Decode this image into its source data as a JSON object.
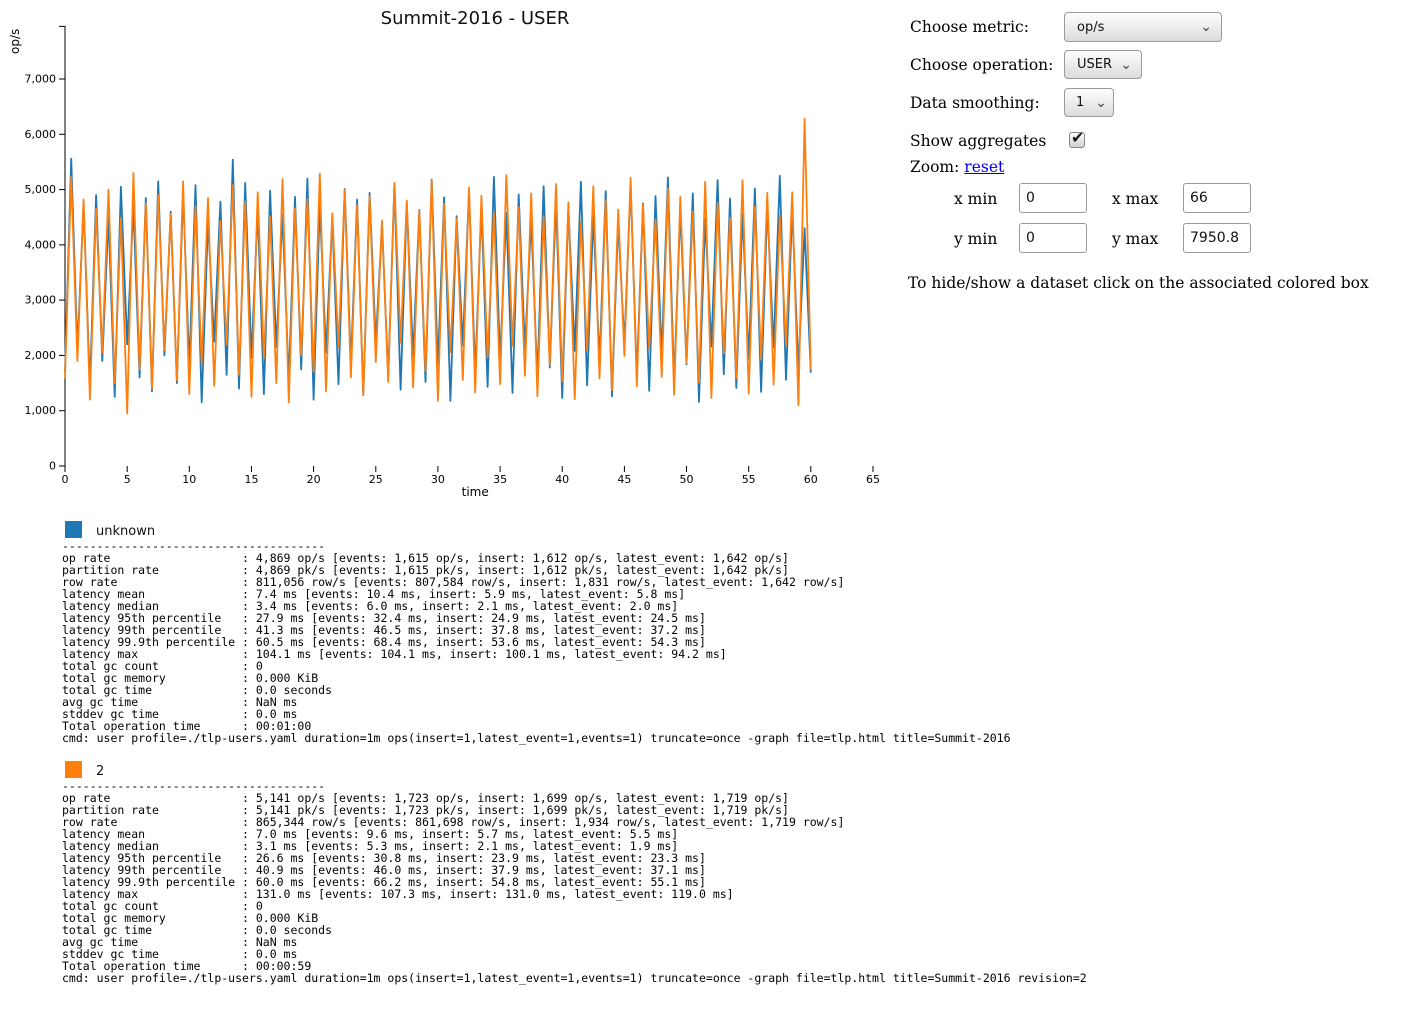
{
  "title": "Summit-2016 - USER",
  "chart_data": {
    "type": "line",
    "title": "Summit-2016 - USER",
    "xlabel": "time",
    "ylabel": "op/s",
    "xlim": [
      0,
      66
    ],
    "ylim": [
      0,
      7950.8
    ],
    "grid": false,
    "legend_position": "below",
    "x_ticks": [
      0,
      5,
      10,
      15,
      20,
      25,
      30,
      35,
      40,
      45,
      50,
      55,
      60,
      65
    ],
    "y_ticks": [
      0,
      1000,
      2000,
      3000,
      4000,
      5000,
      6000,
      7000
    ],
    "x_start": 0,
    "x_step": 0.5,
    "series": [
      {
        "name": "unknown",
        "color": "#1f77b4",
        "values": [
          1700,
          5560,
          2100,
          4750,
          1450,
          4900,
          1900,
          4500,
          1250,
          5050,
          2200,
          4700,
          1600,
          4850,
          1350,
          5150,
          2000,
          4600,
          1500,
          4950,
          1800,
          5080,
          1150,
          4420,
          2250,
          4780,
          1650,
          5540,
          1400,
          5120,
          1950,
          4650,
          1300,
          4980,
          2150,
          4550,
          1550,
          4870,
          1750,
          5200,
          1200,
          4730,
          2050,
          4490,
          1480,
          5010,
          1850,
          4820,
          1280,
          4940,
          2230,
          4380,
          1620,
          5090,
          1380,
          4760,
          1980,
          4630,
          1520,
          5180,
          1820,
          4860,
          1180,
          4520,
          2180,
          4990,
          1680,
          4700,
          1430,
          5230,
          1920,
          4580,
          1320,
          4910,
          2120,
          4450,
          1580,
          5060,
          1780,
          4800,
          1230,
          4680,
          2080,
          5140,
          1460,
          4540,
          1880,
          4970,
          1260,
          4400,
          2210,
          5110,
          1640,
          4750,
          1360,
          4880,
          2010,
          5220,
          1540,
          4620,
          1840,
          4930,
          1160,
          4480,
          2160,
          5170,
          1660,
          4840,
          1410,
          4560,
          1940,
          5020,
          1340,
          4710,
          2140,
          5250,
          1560,
          4660,
          1760,
          4300,
          1700
        ]
      },
      {
        "name": "2",
        "color": "#ff7f0e",
        "values": [
          1600,
          5230,
          1900,
          4820,
          1200,
          4650,
          2050,
          5000,
          1500,
          4480,
          950,
          5300,
          1750,
          4750,
          1400,
          4900,
          2100,
          4560,
          1550,
          5150,
          1300,
          4700,
          1850,
          4850,
          1450,
          4430,
          2200,
          5080,
          1650,
          4780,
          1250,
          4950,
          1950,
          4520,
          1500,
          5190,
          1150,
          4660,
          2000,
          4830,
          1700,
          5290,
          1350,
          4570,
          2150,
          4990,
          1600,
          4720,
          1280,
          4880,
          1880,
          4440,
          1520,
          5120,
          2230,
          4800,
          1420,
          4610,
          1720,
          5160,
          1180,
          4740,
          2060,
          4470,
          1560,
          5040,
          1330,
          4890,
          1960,
          4590,
          1480,
          5260,
          2170,
          4680,
          1630,
          4930,
          1260,
          4510,
          1830,
          5100,
          1530,
          4770,
          1210,
          4420,
          2090,
          5060,
          1580,
          4810,
          1370,
          4640,
          1990,
          5210,
          1440,
          4730,
          2130,
          4460,
          1610,
          5020,
          1290,
          4870,
          1860,
          4600,
          1510,
          5140,
          1230,
          4760,
          2040,
          4490,
          1590,
          5170,
          1310,
          4690,
          1930,
          4940,
          1470,
          4530,
          2180,
          4950,
          1100,
          6280,
          1750
        ]
      }
    ]
  },
  "controls": {
    "metric_label": "Choose metric:",
    "metric_value": "op/s",
    "operation_label": "Choose operation:",
    "operation_value": "USER",
    "smoothing_label": "Data smoothing:",
    "smoothing_value": "1",
    "aggregates_label": "Show aggregates",
    "aggregates_checked": true,
    "zoom_label": "Zoom:",
    "reset_label": "reset",
    "xmin_label": "x min",
    "xmin_value": "0",
    "xmax_label": "x max",
    "xmax_value": "66",
    "ymin_label": "y min",
    "ymin_value": "0",
    "ymax_label": "y max",
    "ymax_value": "7950.8",
    "hint": "To hide/show a dataset click on the associated colored box"
  },
  "icons": {
    "select_chevron": "⌄",
    "checkbox_check": "✔"
  },
  "datasets": [
    {
      "name": "unknown",
      "color": "#1f77b4",
      "lines": [
        "--------------------------------------",
        "op rate                   : 4,869 op/s [events: 1,615 op/s, insert: 1,612 op/s, latest_event: 1,642 op/s]",
        "partition rate            : 4,869 pk/s [events: 1,615 pk/s, insert: 1,612 pk/s, latest_event: 1,642 pk/s]",
        "row rate                  : 811,056 row/s [events: 807,584 row/s, insert: 1,831 row/s, latest_event: 1,642 row/s]",
        "latency mean              : 7.4 ms [events: 10.4 ms, insert: 5.9 ms, latest_event: 5.8 ms]",
        "latency median            : 3.4 ms [events: 6.0 ms, insert: 2.1 ms, latest_event: 2.0 ms]",
        "latency 95th percentile   : 27.9 ms [events: 32.4 ms, insert: 24.9 ms, latest_event: 24.5 ms]",
        "latency 99th percentile   : 41.3 ms [events: 46.5 ms, insert: 37.8 ms, latest_event: 37.2 ms]",
        "latency 99.9th percentile : 60.5 ms [events: 68.4 ms, insert: 53.6 ms, latest_event: 54.3 ms]",
        "latency max               : 104.1 ms [events: 104.1 ms, insert: 100.1 ms, latest_event: 94.2 ms]",
        "total gc count            : 0",
        "total gc memory           : 0.000 KiB",
        "total gc time             : 0.0 seconds",
        "avg gc time               : NaN ms",
        "stddev gc time            : 0.0 ms",
        "Total operation time      : 00:01:00",
        "cmd: user profile=./tlp-users.yaml duration=1m ops(insert=1,latest_event=1,events=1) truncate=once -graph file=tlp.html title=Summit-2016"
      ]
    },
    {
      "name": "2",
      "color": "#ff7f0e",
      "lines": [
        "--------------------------------------",
        "op rate                   : 5,141 op/s [events: 1,723 op/s, insert: 1,699 op/s, latest_event: 1,719 op/s]",
        "partition rate            : 5,141 pk/s [events: 1,723 pk/s, insert: 1,699 pk/s, latest_event: 1,719 pk/s]",
        "row rate                  : 865,344 row/s [events: 861,698 row/s, insert: 1,934 row/s, latest_event: 1,719 row/s]",
        "latency mean              : 7.0 ms [events: 9.6 ms, insert: 5.7 ms, latest_event: 5.5 ms]",
        "latency median            : 3.1 ms [events: 5.3 ms, insert: 2.1 ms, latest_event: 1.9 ms]",
        "latency 95th percentile   : 26.6 ms [events: 30.8 ms, insert: 23.9 ms, latest_event: 23.3 ms]",
        "latency 99th percentile   : 40.9 ms [events: 46.0 ms, insert: 37.9 ms, latest_event: 37.1 ms]",
        "latency 99.9th percentile : 60.0 ms [events: 66.2 ms, insert: 54.8 ms, latest_event: 55.1 ms]",
        "latency max               : 131.0 ms [events: 107.3 ms, insert: 131.0 ms, latest_event: 119.0 ms]",
        "total gc count            : 0",
        "total gc memory           : 0.000 KiB",
        "total gc time             : 0.0 seconds",
        "avg gc time               : NaN ms",
        "stddev gc time            : 0.0 ms",
        "Total operation time      : 00:00:59",
        "cmd: user profile=./tlp-users.yaml duration=1m ops(insert=1,latest_event=1,events=1) truncate=once -graph file=tlp.html title=Summit-2016 revision=2"
      ]
    }
  ]
}
